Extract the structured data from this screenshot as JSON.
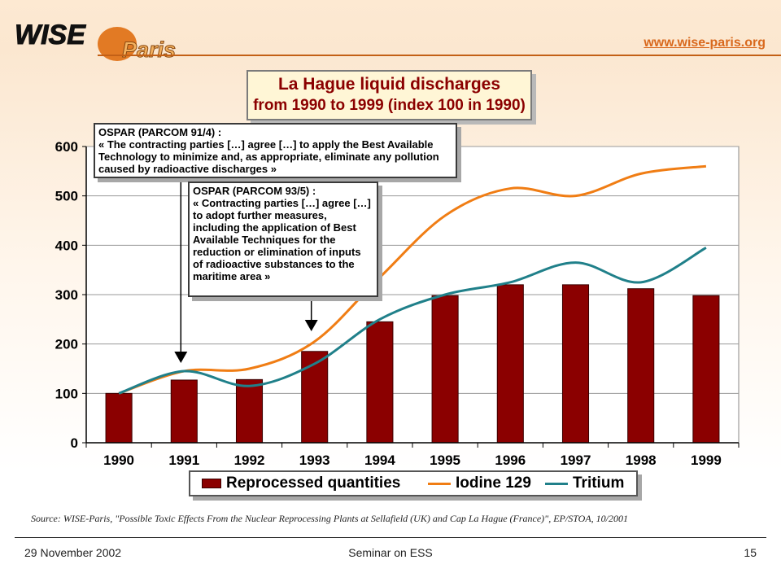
{
  "header": {
    "logo_text": "WISE",
    "logo_subtext": "Paris",
    "site_url": "www.wise-paris.org"
  },
  "title": {
    "line1": "La Hague liquid discharges",
    "line2": "from 1990 to 1999 (index 100 in 1990)"
  },
  "callouts": [
    {
      "heading": "OSPAR (PARCOM 91/4) :",
      "body": "« The contracting parties […] agree […] to apply the Best Available Technology to minimize and, as appropriate, eliminate any pollution caused by radioactive discharges »",
      "points_to": "1991"
    },
    {
      "heading": "OSPAR (PARCOM 93/5) :",
      "body": "« Contracting parties […] agree […] to adopt further measures, including the application of Best Available Techniques for the reduction or elimination of inputs of radioactive substances to the maritime area »",
      "points_to": "1993"
    }
  ],
  "chart_data": {
    "type": "bar",
    "categories": [
      "1990",
      "1991",
      "1992",
      "1993",
      "1994",
      "1995",
      "1996",
      "1997",
      "1998",
      "1999"
    ],
    "ylim": [
      0,
      600
    ],
    "yticks": [
      0,
      100,
      200,
      300,
      400,
      500,
      600
    ],
    "grid": true,
    "legend_position": "bottom",
    "series": [
      {
        "name": "Reprocessed quantities",
        "kind": "bar",
        "color": "#8b0000",
        "values": [
          100,
          127,
          128,
          185,
          245,
          298,
          320,
          320,
          312,
          298
        ]
      },
      {
        "name": "Iodine 129",
        "kind": "line",
        "color": "#f07d14",
        "values": [
          100,
          145,
          150,
          205,
          335,
          460,
          515,
          500,
          545,
          560
        ]
      },
      {
        "name": "Tritium",
        "kind": "line",
        "color": "#20808a",
        "values": [
          100,
          145,
          115,
          160,
          250,
          300,
          325,
          365,
          325,
          395
        ]
      }
    ]
  },
  "source_note": "Source: WISE-Paris, \"Possible Toxic Effects From the Nuclear Reprocessing Plants at Sellafield (UK) and Cap La Hague (France)\", EP/STOA, 10/2001",
  "footer": {
    "date": "29 November 2002",
    "event": "Seminar on ESS",
    "page": "15"
  }
}
